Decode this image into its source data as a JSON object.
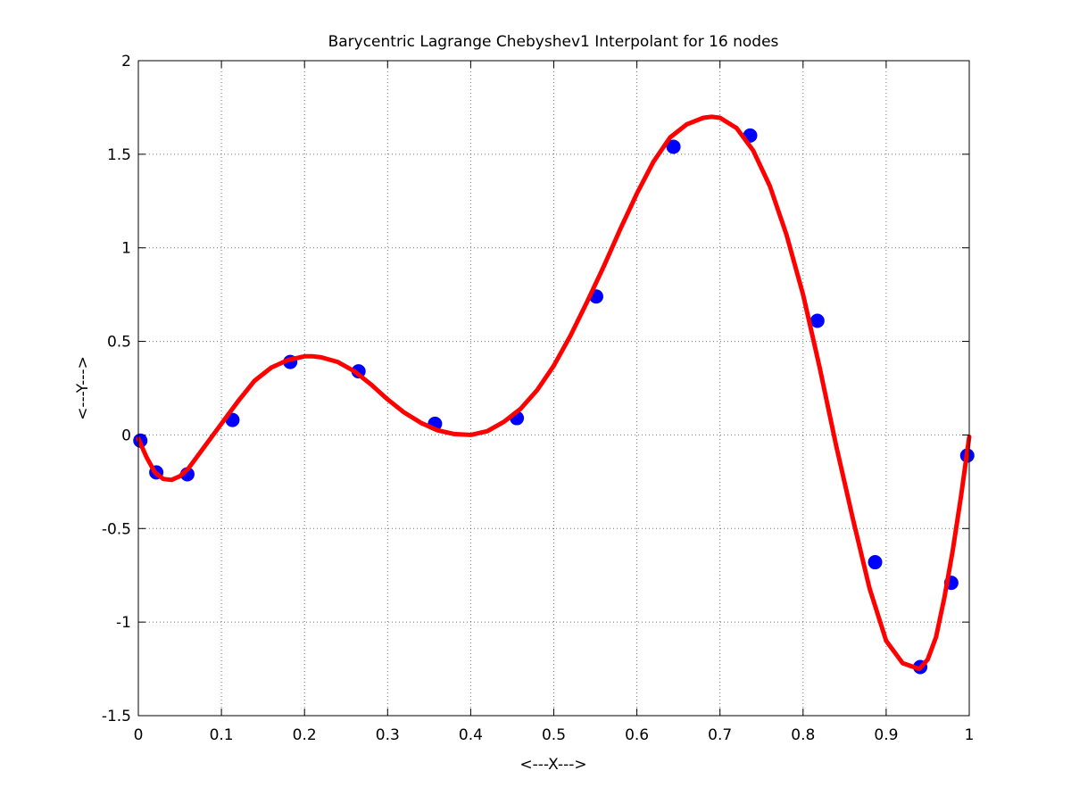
{
  "chart_data": {
    "type": "line",
    "title": "Barycentric Lagrange Chebyshev1 Interpolant for 16 nodes",
    "xlabel": "<---X--->",
    "ylabel": "<---Y--->",
    "xlim": [
      0,
      1
    ],
    "ylim": [
      -1.5,
      2
    ],
    "xticks": [
      0,
      0.1,
      0.2,
      0.3,
      0.4,
      0.5,
      0.6,
      0.7,
      0.8,
      0.9,
      1
    ],
    "xtick_labels": [
      "0",
      "0.1",
      "0.2",
      "0.3",
      "0.4",
      "0.5",
      "0.6",
      "0.7",
      "0.8",
      "0.9",
      "1"
    ],
    "yticks": [
      -1.5,
      -1,
      -0.5,
      0,
      0.5,
      1,
      1.5,
      2
    ],
    "ytick_labels": [
      "-1.5",
      "-1",
      "-0.5",
      "0",
      "0.5",
      "1",
      "1.5",
      "2"
    ],
    "grid": true,
    "series": [
      {
        "type": "scatter",
        "color": "#0000ff",
        "marker": "circle",
        "x": [
          0.0024,
          0.0216,
          0.059,
          0.1133,
          0.1828,
          0.265,
          0.357,
          0.4555,
          0.551,
          0.644,
          0.7363,
          0.8172,
          0.8867,
          0.941,
          0.9784,
          0.9976
        ],
        "y": [
          -0.03,
          -0.2,
          -0.21,
          0.08,
          0.39,
          0.34,
          0.06,
          0.09,
          0.74,
          1.54,
          1.6,
          0.61,
          -0.68,
          -1.24,
          -0.79,
          -0.11
        ]
      },
      {
        "type": "line",
        "color": "#ff0000",
        "x": [
          0.0,
          0.01,
          0.02,
          0.03,
          0.04,
          0.05,
          0.06,
          0.08,
          0.1,
          0.12,
          0.14,
          0.16,
          0.18,
          0.2,
          0.21,
          0.22,
          0.24,
          0.26,
          0.28,
          0.3,
          0.32,
          0.34,
          0.36,
          0.38,
          0.4,
          0.42,
          0.44,
          0.46,
          0.48,
          0.5,
          0.52,
          0.54,
          0.56,
          0.58,
          0.6,
          0.62,
          0.64,
          0.66,
          0.68,
          0.69,
          0.7,
          0.72,
          0.74,
          0.76,
          0.78,
          0.8,
          0.82,
          0.84,
          0.86,
          0.88,
          0.9,
          0.92,
          0.94,
          0.95,
          0.96,
          0.97,
          0.98,
          0.99,
          1.0
        ],
        "y": [
          -0.02,
          -0.12,
          -0.2,
          -0.235,
          -0.24,
          -0.22,
          -0.18,
          -0.06,
          0.06,
          0.18,
          0.29,
          0.36,
          0.4,
          0.42,
          0.42,
          0.415,
          0.39,
          0.34,
          0.27,
          0.19,
          0.12,
          0.065,
          0.025,
          0.005,
          0.0,
          0.02,
          0.07,
          0.14,
          0.24,
          0.37,
          0.53,
          0.71,
          0.9,
          1.1,
          1.29,
          1.46,
          1.59,
          1.66,
          1.695,
          1.7,
          1.695,
          1.64,
          1.52,
          1.33,
          1.07,
          0.75,
          0.36,
          -0.06,
          -0.45,
          -0.82,
          -1.1,
          -1.22,
          -1.25,
          -1.2,
          -1.08,
          -0.87,
          -0.62,
          -0.33,
          -0.01
        ]
      }
    ]
  }
}
